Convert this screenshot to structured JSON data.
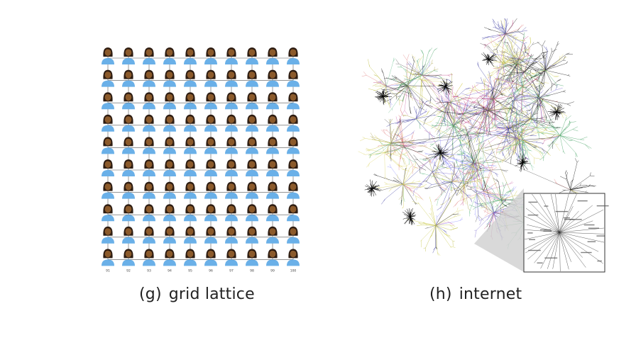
{
  "panels": [
    {
      "id": "g",
      "label": "(g)",
      "title": "grid lattice",
      "grid": {
        "rows": 10,
        "cols": 10
      },
      "column_labels": [
        "91",
        "92",
        "93",
        "94",
        "95",
        "96",
        "97",
        "98",
        "99",
        "100"
      ]
    },
    {
      "id": "h",
      "label": "(h)",
      "title": "internet"
    }
  ],
  "colors": {
    "skin": "#8b5a2b",
    "hair": "#2e1d12",
    "shirt": "#6ab0e8",
    "edge": "#555555"
  }
}
